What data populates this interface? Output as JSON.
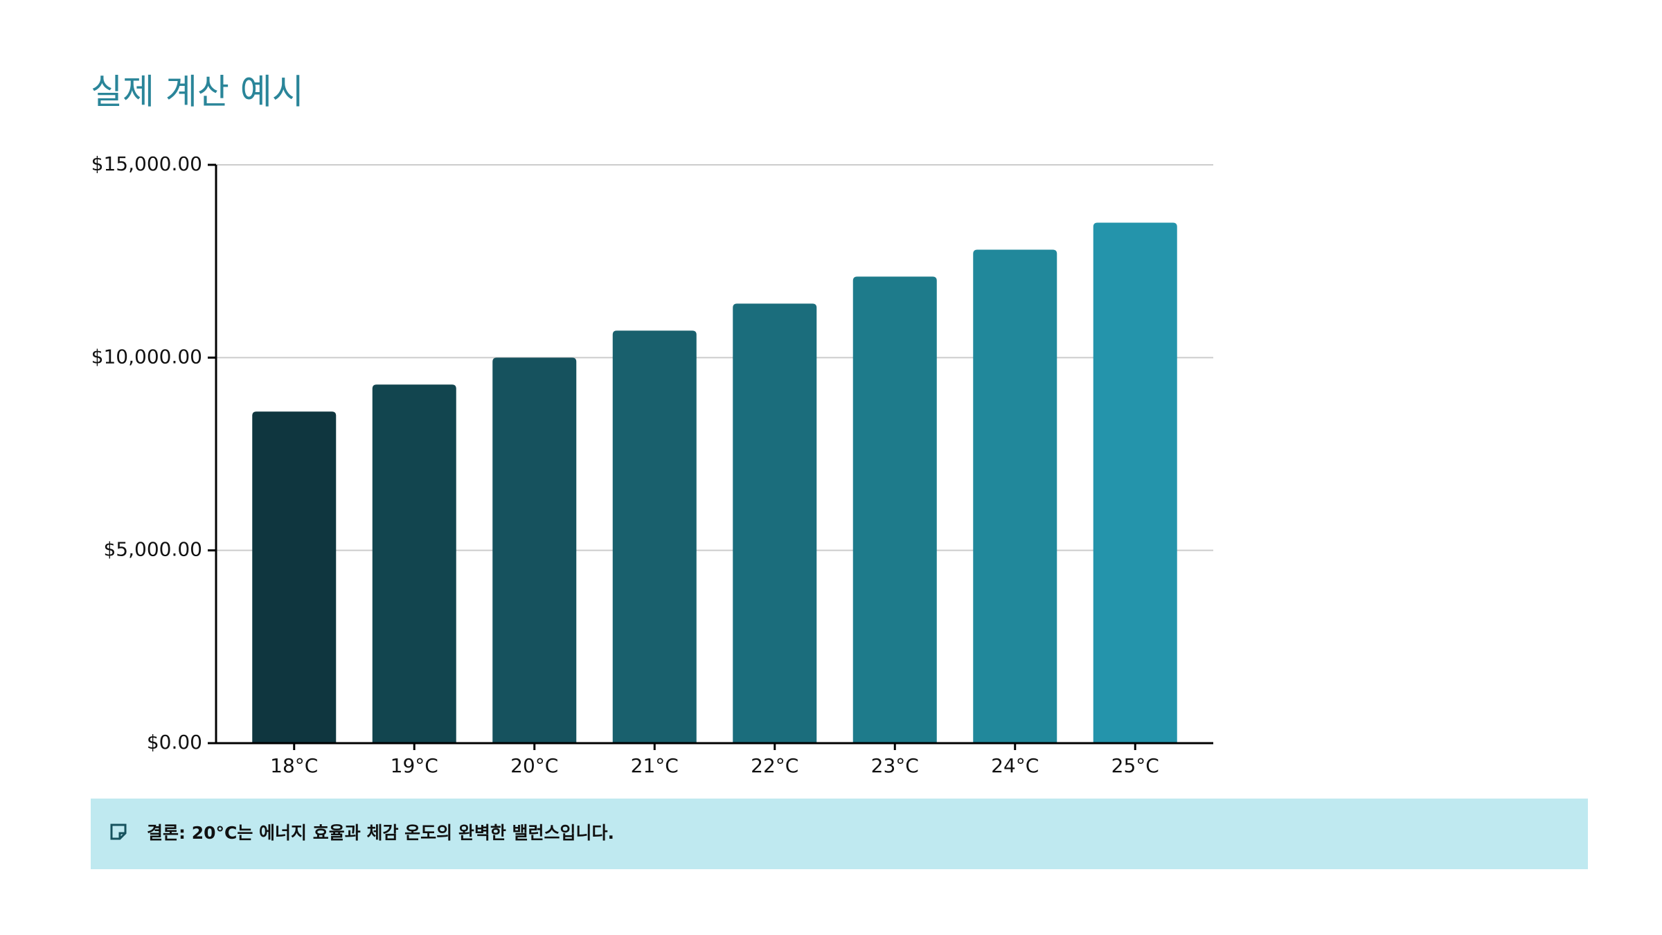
{
  "chart_data": {
    "type": "bar",
    "title": "실제 계산 예시",
    "categories": [
      "18°C",
      "19°C",
      "20°C",
      "21°C",
      "22°C",
      "23°C",
      "24°C",
      "25°C"
    ],
    "values": [
      8600,
      9300,
      10000,
      10700,
      11400,
      12100,
      12800,
      13500
    ],
    "colors": [
      "#0f363f",
      "#12454f",
      "#16525e",
      "#19606d",
      "#1b6d7c",
      "#1e7b8b",
      "#21889b",
      "#2494ab"
    ],
    "ylim": [
      0,
      15000
    ],
    "yticks": [
      {
        "value": 0,
        "label": "$0.00"
      },
      {
        "value": 5000,
        "label": "$5,000.00"
      },
      {
        "value": 10000,
        "label": "$10,000.00"
      },
      {
        "value": 15000,
        "label": "$15,000.00"
      }
    ],
    "grid": true
  },
  "note": {
    "text": "결론: 20°C는 에너지 효율과 체감 온도의 완벽한 밸런스입니다."
  }
}
